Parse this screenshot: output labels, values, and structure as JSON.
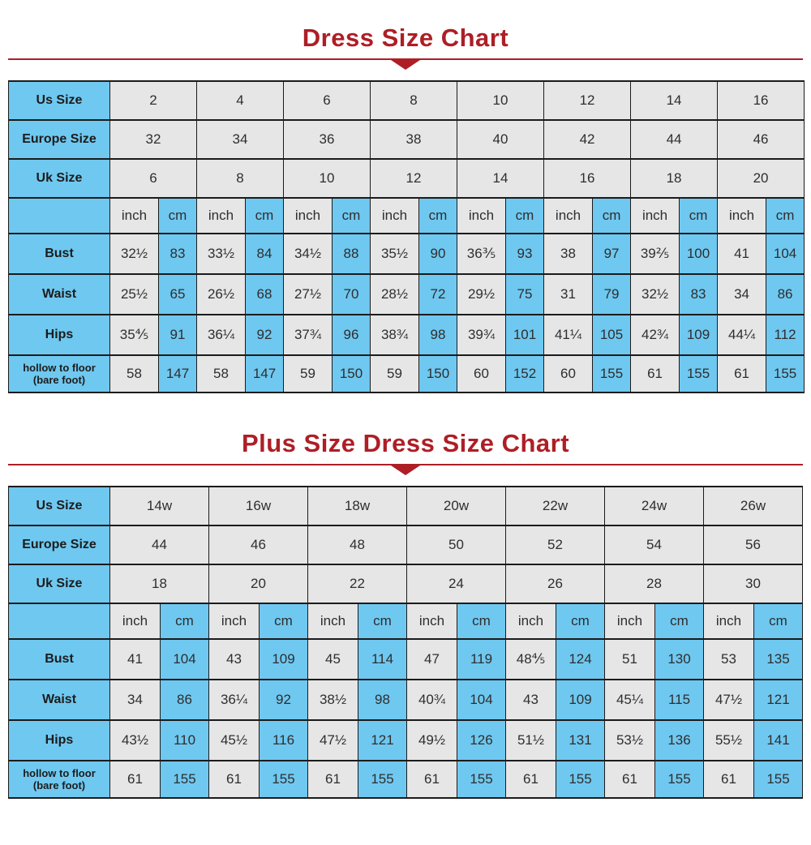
{
  "colors": {
    "accent_red": "#ae1e26",
    "cell_blue": "#6fc8f0",
    "cell_gray": "#e6e6e6",
    "border_black": "#1b1b1b",
    "text_dark": "#2e2e2e"
  },
  "chart_data": [
    {
      "type": "table",
      "title": "Dress Size Chart",
      "size_rows": [
        {
          "label": "Us Size",
          "values": [
            "2",
            "4",
            "6",
            "8",
            "10",
            "12",
            "14",
            "16"
          ]
        },
        {
          "label": "Europe Size",
          "values": [
            "32",
            "34",
            "36",
            "38",
            "40",
            "42",
            "44",
            "46"
          ]
        },
        {
          "label": "Uk Size",
          "values": [
            "6",
            "8",
            "10",
            "12",
            "14",
            "16",
            "18",
            "20"
          ]
        }
      ],
      "units": [
        "inch",
        "cm"
      ],
      "measure_rows": [
        {
          "label": "Bust",
          "pairs": [
            [
              "32½",
              "83"
            ],
            [
              "33½",
              "84"
            ],
            [
              "34½",
              "88"
            ],
            [
              "35½",
              "90"
            ],
            [
              "36⅗",
              "93"
            ],
            [
              "38",
              "97"
            ],
            [
              "39⅖",
              "100"
            ],
            [
              "41",
              "104"
            ]
          ]
        },
        {
          "label": "Waist",
          "pairs": [
            [
              "25½",
              "65"
            ],
            [
              "26½",
              "68"
            ],
            [
              "27½",
              "70"
            ],
            [
              "28½",
              "72"
            ],
            [
              "29½",
              "75"
            ],
            [
              "31",
              "79"
            ],
            [
              "32½",
              "83"
            ],
            [
              "34",
              "86"
            ]
          ]
        },
        {
          "label": "Hips",
          "pairs": [
            [
              "35⅘",
              "91"
            ],
            [
              "36¼",
              "92"
            ],
            [
              "37¾",
              "96"
            ],
            [
              "38¾",
              "98"
            ],
            [
              "39¾",
              "101"
            ],
            [
              "41¼",
              "105"
            ],
            [
              "42¾",
              "109"
            ],
            [
              "44¼",
              "112"
            ]
          ]
        },
        {
          "label": "hollow to floor",
          "sublabel": "(bare foot)",
          "pairs": [
            [
              "58",
              "147"
            ],
            [
              "58",
              "147"
            ],
            [
              "59",
              "150"
            ],
            [
              "59",
              "150"
            ],
            [
              "60",
              "152"
            ],
            [
              "60",
              "155"
            ],
            [
              "61",
              "155"
            ],
            [
              "61",
              "155"
            ]
          ]
        }
      ]
    },
    {
      "type": "table",
      "title": "Plus Size Dress Size Chart",
      "size_rows": [
        {
          "label": "Us Size",
          "values": [
            "14w",
            "16w",
            "18w",
            "20w",
            "22w",
            "24w",
            "26w"
          ]
        },
        {
          "label": "Europe Size",
          "values": [
            "44",
            "46",
            "48",
            "50",
            "52",
            "54",
            "56"
          ]
        },
        {
          "label": "Uk Size",
          "values": [
            "18",
            "20",
            "22",
            "24",
            "26",
            "28",
            "30"
          ]
        }
      ],
      "units": [
        "inch",
        "cm"
      ],
      "measure_rows": [
        {
          "label": "Bust",
          "pairs": [
            [
              "41",
              "104"
            ],
            [
              "43",
              "109"
            ],
            [
              "45",
              "114"
            ],
            [
              "47",
              "119"
            ],
            [
              "48⅘",
              "124"
            ],
            [
              "51",
              "130"
            ],
            [
              "53",
              "135"
            ]
          ]
        },
        {
          "label": "Waist",
          "pairs": [
            [
              "34",
              "86"
            ],
            [
              "36¼",
              "92"
            ],
            [
              "38½",
              "98"
            ],
            [
              "40¾",
              "104"
            ],
            [
              "43",
              "109"
            ],
            [
              "45¼",
              "115"
            ],
            [
              "47½",
              "121"
            ]
          ]
        },
        {
          "label": "Hips",
          "pairs": [
            [
              "43½",
              "110"
            ],
            [
              "45½",
              "116"
            ],
            [
              "47½",
              "121"
            ],
            [
              "49½",
              "126"
            ],
            [
              "51½",
              "131"
            ],
            [
              "53½",
              "136"
            ],
            [
              "55½",
              "141"
            ]
          ]
        },
        {
          "label": "hollow to floor",
          "sublabel": "(bare foot)",
          "pairs": [
            [
              "61",
              "155"
            ],
            [
              "61",
              "155"
            ],
            [
              "61",
              "155"
            ],
            [
              "61",
              "155"
            ],
            [
              "61",
              "155"
            ],
            [
              "61",
              "155"
            ],
            [
              "61",
              "155"
            ]
          ]
        }
      ]
    }
  ]
}
